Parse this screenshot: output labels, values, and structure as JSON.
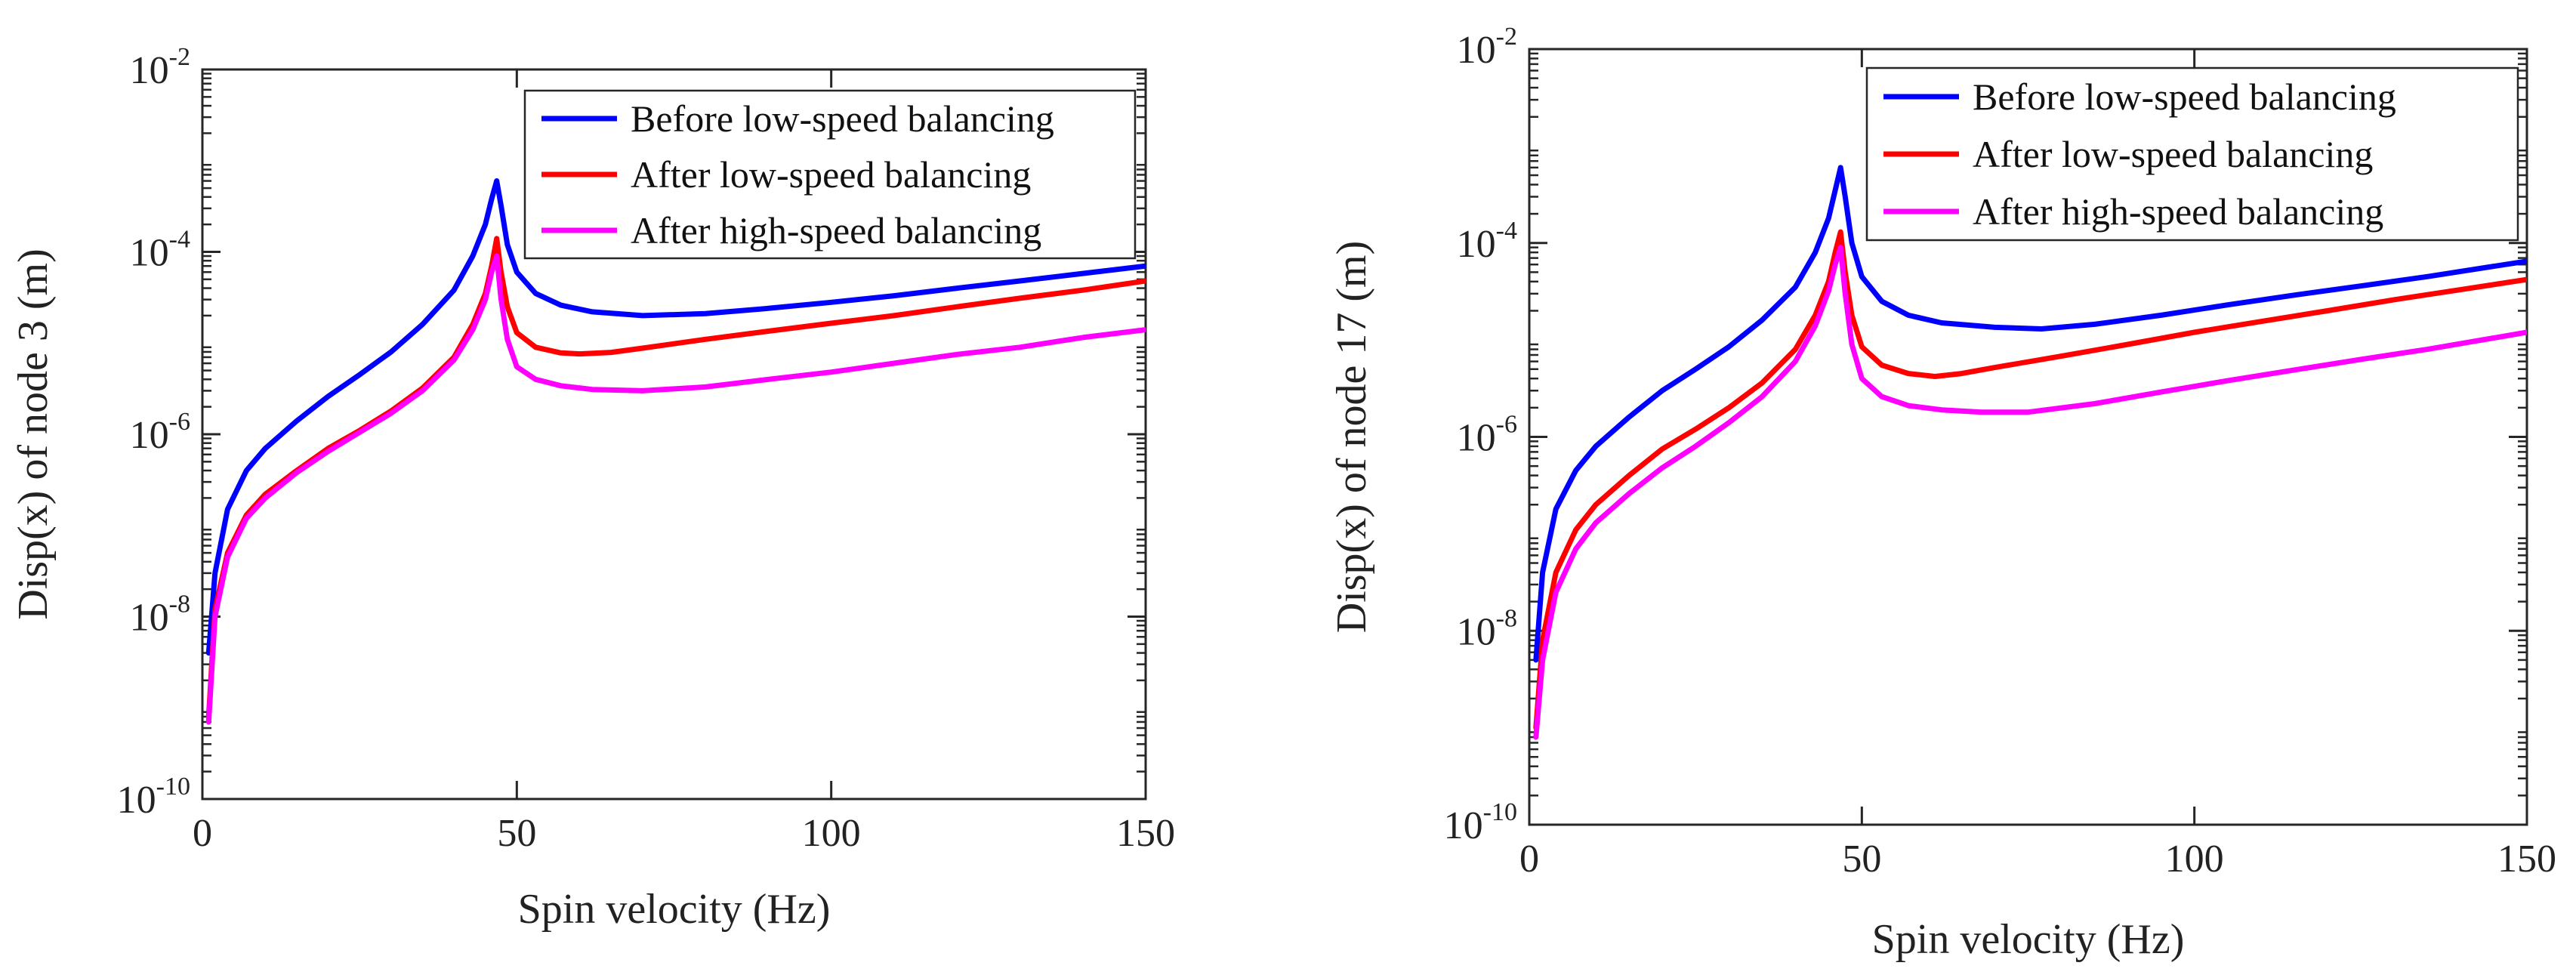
{
  "chart_data": [
    {
      "type": "line",
      "xlabel": "Spin velocity (Hz)",
      "ylabel": "Disp(x) of node 3 (m)",
      "xlim": [
        0,
        150
      ],
      "xticks": [
        0,
        50,
        100,
        150
      ],
      "yscale": "log",
      "ylim": [
        1e-10,
        0.01
      ],
      "yticks": [
        {
          "base": "10",
          "exp": "-10",
          "value": 1e-10
        },
        {
          "base": "10",
          "exp": "-8",
          "value": 1e-08
        },
        {
          "base": "10",
          "exp": "-6",
          "value": 1e-06
        },
        {
          "base": "10",
          "exp": "-4",
          "value": 0.0001
        },
        {
          "base": "10",
          "exp": "-2",
          "value": 0.01
        }
      ],
      "legend_position": "top-right",
      "series": [
        {
          "name": "Before low-speed balancing",
          "color": "#0000ff",
          "x": [
            1,
            2,
            4,
            7,
            10,
            15,
            20,
            25,
            30,
            35,
            40,
            43,
            45,
            46,
            46.8,
            47.5,
            48.5,
            50,
            53,
            57,
            62,
            70,
            80,
            90,
            100,
            110,
            120,
            130,
            140,
            150
          ],
          "y": [
            4e-09,
            3e-08,
            1.5e-07,
            4e-07,
            7e-07,
            1.4e-06,
            2.6e-06,
            4.5e-06,
            8e-06,
            1.6e-05,
            3.8e-05,
            9e-05,
            0.0002,
            0.00038,
            0.0006,
            0.00032,
            0.00012,
            6e-05,
            3.5e-05,
            2.6e-05,
            2.2e-05,
            2e-05,
            2.1e-05,
            2.4e-05,
            2.8e-05,
            3.3e-05,
            4e-05,
            4.8e-05,
            5.8e-05,
            7e-05
          ]
        },
        {
          "name": "After low-speed balancing",
          "color": "#ff0000",
          "x": [
            1,
            2,
            4,
            7,
            10,
            15,
            20,
            25,
            30,
            35,
            40,
            43,
            45,
            46,
            46.8,
            47.5,
            48.5,
            50,
            53,
            57,
            60,
            65,
            70,
            80,
            90,
            100,
            110,
            120,
            130,
            140,
            150
          ],
          "y": [
            8e-10,
            1.2e-08,
            5e-08,
            1.3e-07,
            2.2e-07,
            4e-07,
            7e-07,
            1.1e-06,
            1.8e-06,
            3.2e-06,
            7e-06,
            1.6e-05,
            3.5e-05,
            7e-05,
            0.00014,
            6e-05,
            2.5e-05,
            1.3e-05,
            9e-06,
            7.8e-06,
            7.6e-06,
            7.9e-06,
            8.8e-06,
            1.1e-05,
            1.35e-05,
            1.65e-05,
            2e-05,
            2.5e-05,
            3.1e-05,
            3.8e-05,
            4.8e-05
          ]
        },
        {
          "name": "After high-speed balancing",
          "color": "#ff00ff",
          "x": [
            1,
            2,
            4,
            7,
            10,
            15,
            20,
            25,
            30,
            35,
            40,
            43,
            45,
            46,
            46.8,
            47.5,
            48.5,
            50,
            53,
            57,
            62,
            70,
            80,
            90,
            100,
            110,
            120,
            130,
            140,
            150
          ],
          "y": [
            7e-10,
            1e-08,
            4.5e-08,
            1.2e-07,
            2e-07,
            3.8e-07,
            6.5e-07,
            1.05e-06,
            1.7e-06,
            3e-06,
            6.5e-06,
            1.4e-05,
            3e-05,
            6e-05,
            9e-05,
            3e-05,
            1.1e-05,
            5.5e-06,
            4e-06,
            3.4e-06,
            3.1e-06,
            3e-06,
            3.3e-06,
            4e-06,
            4.8e-06,
            6e-06,
            7.5e-06,
            9e-06,
            1.15e-05,
            1.4e-05
          ]
        }
      ]
    },
    {
      "type": "line",
      "xlabel": "Spin velocity (Hz)",
      "ylabel": "Disp(x) of node 17 (m)",
      "xlim": [
        0,
        150
      ],
      "xticks": [
        0,
        50,
        100,
        150
      ],
      "yscale": "log",
      "ylim": [
        1e-10,
        0.01
      ],
      "yticks": [
        {
          "base": "10",
          "exp": "-10",
          "value": 1e-10
        },
        {
          "base": "10",
          "exp": "-8",
          "value": 1e-08
        },
        {
          "base": "10",
          "exp": "-6",
          "value": 1e-06
        },
        {
          "base": "10",
          "exp": "-4",
          "value": 0.0001
        },
        {
          "base": "10",
          "exp": "-2",
          "value": 0.01
        }
      ],
      "legend_position": "top-right",
      "series": [
        {
          "name": "Before low-speed balancing",
          "color": "#0000ff",
          "x": [
            1,
            2,
            4,
            7,
            10,
            15,
            20,
            25,
            30,
            35,
            40,
            43,
            45,
            46,
            46.8,
            47.5,
            48.5,
            50,
            53,
            57,
            62,
            70,
            77,
            85,
            95,
            105,
            115,
            125,
            135,
            150
          ],
          "y": [
            5e-09,
            4e-08,
            1.8e-07,
            4.5e-07,
            8e-07,
            1.6e-06,
            3e-06,
            5e-06,
            8.5e-06,
            1.6e-05,
            3.5e-05,
            8e-05,
            0.00018,
            0.00035,
            0.0006,
            0.0003,
            0.0001,
            4.5e-05,
            2.5e-05,
            1.8e-05,
            1.5e-05,
            1.35e-05,
            1.3e-05,
            1.45e-05,
            1.8e-05,
            2.3e-05,
            2.9e-05,
            3.6e-05,
            4.5e-05,
            6.5e-05
          ]
        },
        {
          "name": "After low-speed balancing",
          "color": "#ff0000",
          "x": [
            1,
            2,
            4,
            7,
            10,
            15,
            20,
            25,
            30,
            35,
            40,
            43,
            45,
            46,
            46.8,
            47.5,
            48.5,
            50,
            53,
            57,
            61,
            65,
            70,
            80,
            90,
            100,
            110,
            120,
            130,
            140,
            150
          ],
          "y": [
            1e-09,
            8e-09,
            4e-08,
            1.1e-07,
            2e-07,
            4e-07,
            7.5e-07,
            1.2e-06,
            2e-06,
            3.6e-06,
            8e-06,
            1.8e-05,
            4e-05,
            8e-05,
            0.00013,
            5e-05,
            1.8e-05,
            8.5e-06,
            5.5e-06,
            4.5e-06,
            4.2e-06,
            4.5e-06,
            5.2e-06,
            6.8e-06,
            9e-06,
            1.2e-05,
            1.55e-05,
            2e-05,
            2.6e-05,
            3.3e-05,
            4.2e-05
          ]
        },
        {
          "name": "After high-speed balancing",
          "color": "#ff00ff",
          "x": [
            1,
            2,
            4,
            7,
            10,
            15,
            20,
            25,
            30,
            35,
            40,
            43,
            45,
            46,
            46.8,
            47.5,
            48.5,
            50,
            53,
            57,
            62,
            68,
            75,
            85,
            95,
            105,
            115,
            125,
            135,
            150
          ],
          "y": [
            8e-10,
            5e-09,
            2.5e-08,
            7e-08,
            1.3e-07,
            2.6e-07,
            4.8e-07,
            8e-07,
            1.4e-06,
            2.6e-06,
            6e-06,
            1.4e-05,
            3.2e-05,
            6e-05,
            9e-05,
            3e-05,
            9e-06,
            4e-06,
            2.6e-06,
            2.1e-06,
            1.9e-06,
            1.8e-06,
            1.8e-06,
            2.2e-06,
            2.9e-06,
            3.8e-06,
            4.9e-06,
            6.3e-06,
            8e-06,
            1.2e-05
          ]
        }
      ]
    }
  ]
}
